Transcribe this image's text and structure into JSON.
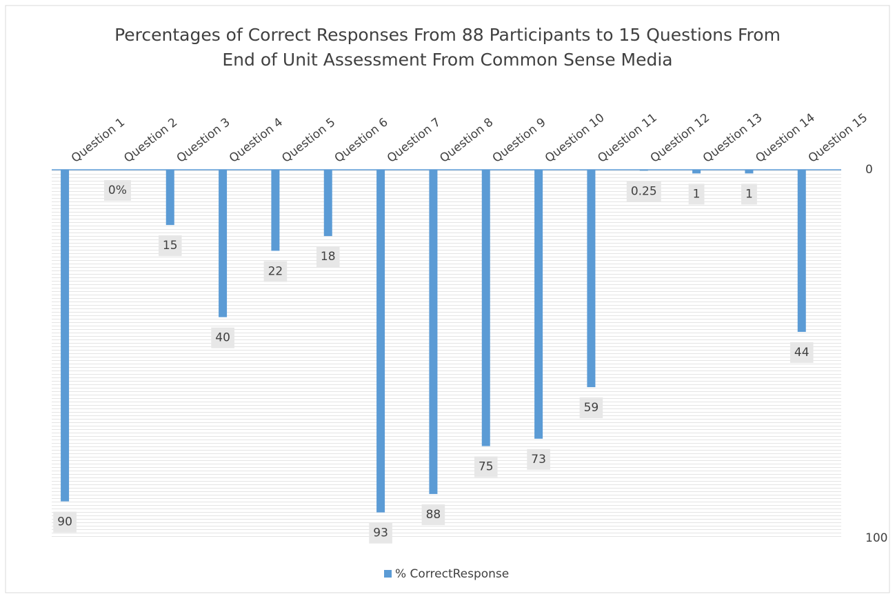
{
  "chart_data": {
    "type": "bar",
    "title": [
      "Percentages of Correct Responses From 88 Participants to 15 Questions From",
      "End of Unit Assessment From Common Sense Media"
    ],
    "categories": [
      "Question 1",
      "Question 2",
      "Question 3",
      "Question 4",
      "Question 5",
      "Question 6",
      "Question 7",
      "Question 8",
      "Question 9",
      "Question 10",
      "Question 11",
      "Question 12",
      "Question 13",
      "Question 14",
      "Question 15"
    ],
    "series": [
      {
        "name": "% CorrectResponse",
        "color": "#5b9bd5",
        "values": [
          90,
          0,
          15,
          40,
          22,
          18,
          93,
          88,
          75,
          73,
          59,
          0.25,
          1,
          1,
          44
        ],
        "value_labels": [
          "90",
          "0%",
          "15",
          "40",
          "22",
          "18",
          "93",
          "88",
          "75",
          "73",
          "59",
          "0.25",
          "1",
          "1",
          "44"
        ]
      }
    ],
    "ylim": [
      0,
      100
    ],
    "yticks": [
      0,
      100
    ],
    "y_reversed": true,
    "legend": "bottom"
  }
}
